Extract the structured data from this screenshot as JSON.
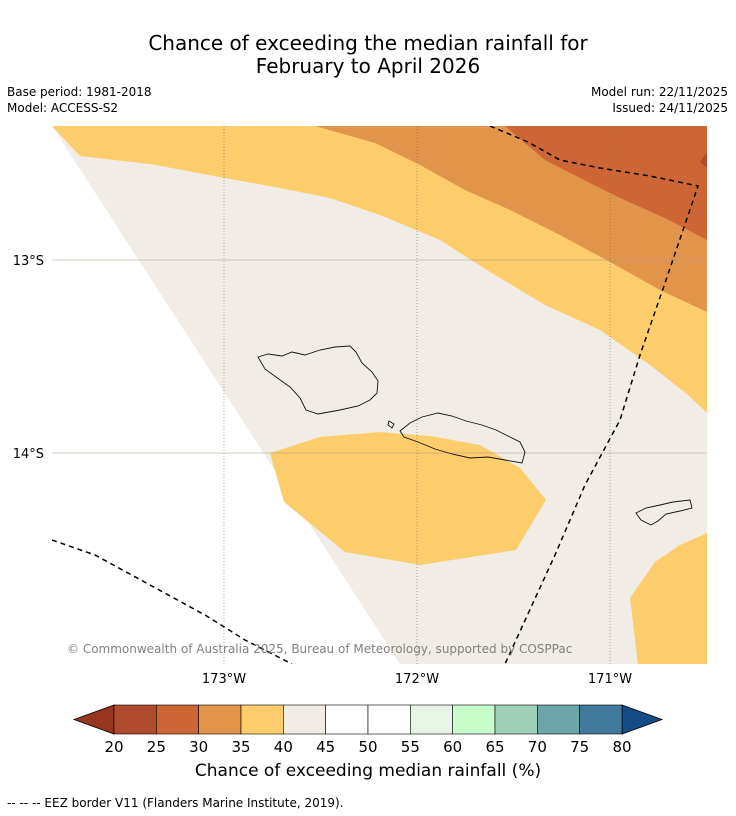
{
  "title": {
    "line1": "Chance of exceeding the median rainfall for",
    "line2": "February to April 2026"
  },
  "meta": {
    "base_period": "Base period: 1981-2018",
    "model": "Model: ACCESS-S2",
    "model_run": "Model run: 22/11/2025",
    "issued": "Issued: 24/11/2025"
  },
  "map": {
    "lat_labels": [
      "13°S",
      "14°S"
    ],
    "lon_labels": [
      "173°W",
      "172°W",
      "171°W"
    ],
    "copyright": "© Commonwealth of Australia 2025, Bureau of Meteorology, supported by COSPPac"
  },
  "colorbar": {
    "ticks": [
      "20",
      "25",
      "30",
      "35",
      "40",
      "45",
      "50",
      "55",
      "60",
      "65",
      "70",
      "75",
      "80"
    ],
    "colors": [
      "#b04a2c",
      "#cd6634",
      "#e1944a",
      "#fdcd6c",
      "#f1ece6",
      "#ffffff",
      "#ffffff",
      "#e8f5e6",
      "#c7fdc8",
      "#9dd0b6",
      "#6ca6a8",
      "#40799b"
    ],
    "under_color": "#99351e",
    "over_color": "#154c84",
    "label": "Chance of exceeding median rainfall (%)"
  },
  "footer": "--  --  -- EEZ border V11 (Flanders Marine Institute, 2019).",
  "palette": {
    "c20": "#b04a2c",
    "c25": "#cd6634",
    "c30": "#e1944a",
    "c35": "#fdcd6c",
    "c40": "#f1ece6",
    "c45": "#ffffff"
  }
}
